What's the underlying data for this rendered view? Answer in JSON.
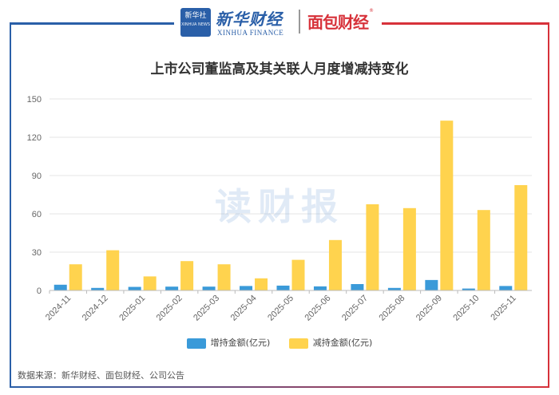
{
  "header": {
    "xinhua_logo_text": "新华社",
    "xinhua_logo_sub": "XINHUA NEWS",
    "xinhua_name": "新华财经",
    "xinhua_en": "XINHUA FINANCE",
    "mianbao_name": "面包财经",
    "mianbao_reg": "®"
  },
  "colors": {
    "increase": "#3a9ad9",
    "decrease": "#ffd34e",
    "frame_left": "#2a5fa8",
    "frame_right": "#d7323a"
  },
  "watermark": "读财报",
  "source": "数据来源：新华财经、面包财经、公司公告",
  "chart_data": {
    "type": "bar",
    "title": "上市公司董监高及其关联人月度增减持变化",
    "xlabel": "",
    "ylabel": "",
    "ylim": [
      0,
      150
    ],
    "yticks": [
      0,
      30,
      60,
      90,
      120,
      150
    ],
    "grid": true,
    "legend_position": "bottom",
    "categories": [
      "2024-11",
      "2024-12",
      "2025-01",
      "2025-02",
      "2025-03",
      "2025-04",
      "2025-05",
      "2025-06",
      "2025-07",
      "2025-08",
      "2025-09",
      "2025-10",
      "2025-11"
    ],
    "series": [
      {
        "name": "增持金额(亿元)",
        "values": [
          4.5,
          2.0,
          2.8,
          3.0,
          3.0,
          3.5,
          3.8,
          3.2,
          5.0,
          2.0,
          8.2,
          1.5,
          3.5
        ]
      },
      {
        "name": "减持金额(亿元)",
        "values": [
          20.5,
          31.5,
          11.0,
          23.0,
          20.5,
          9.5,
          24.0,
          39.5,
          67.5,
          64.5,
          133.0,
          63.0,
          82.5
        ]
      }
    ]
  }
}
